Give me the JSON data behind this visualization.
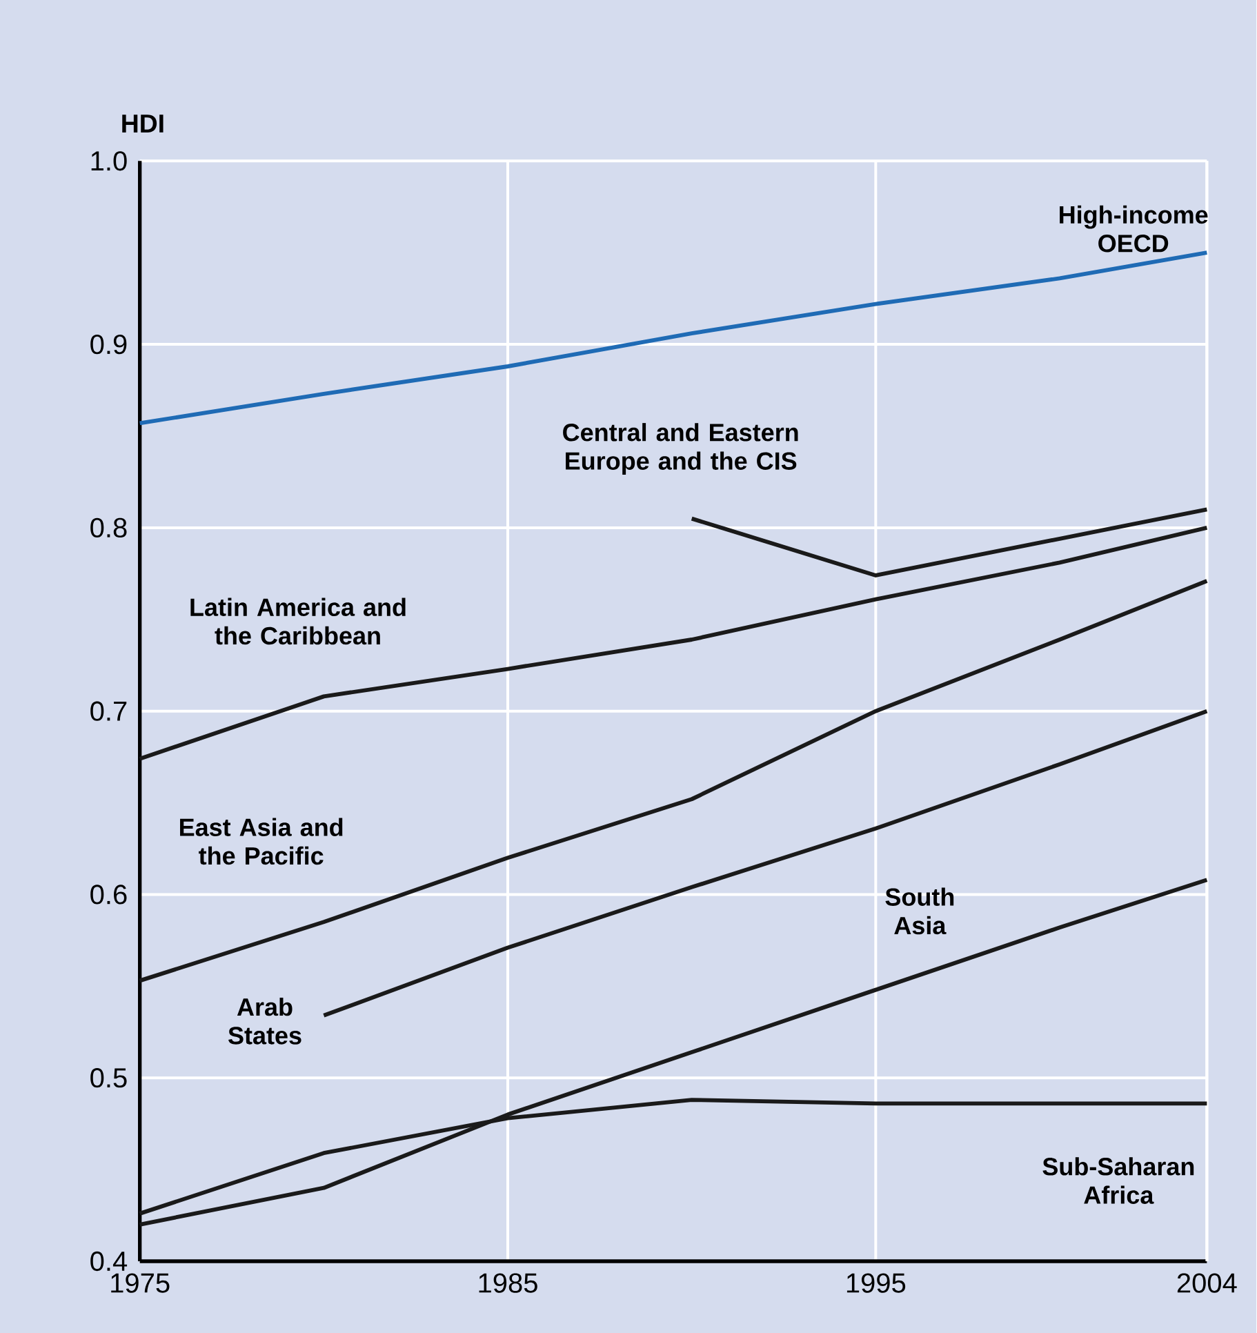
{
  "chart_data": {
    "type": "line",
    "ylabel": "HDI",
    "x": [
      1975,
      1980,
      1985,
      1990,
      1995,
      2000,
      2004
    ],
    "xlim": [
      1975,
      2004
    ],
    "xticks": [
      1975,
      1985,
      1995,
      2004
    ],
    "ylim": [
      0.4,
      1.0
    ],
    "yticks": [
      {
        "value": 0.4,
        "label": "0.4"
      },
      {
        "value": 0.5,
        "label": "0.5"
      },
      {
        "value": 0.6,
        "label": "0.6"
      },
      {
        "value": 0.7,
        "label": "0.7"
      },
      {
        "value": 0.8,
        "label": "0.8"
      },
      {
        "value": 0.9,
        "label": "0.9"
      },
      {
        "value": 1.0,
        "label": "1.0"
      }
    ],
    "grid": true,
    "series": [
      {
        "name": "High-income OECD",
        "color": "#1f6bb5",
        "values": [
          0.857,
          0.873,
          0.888,
          0.906,
          0.922,
          0.936,
          0.95
        ]
      },
      {
        "name": "Central and Eastern Europe and the CIS",
        "color": "#1a1a1a",
        "values": [
          null,
          null,
          null,
          0.805,
          0.774,
          0.794,
          0.81
        ]
      },
      {
        "name": "Latin America and the Caribbean",
        "color": "#1a1a1a",
        "values": [
          0.674,
          0.708,
          0.723,
          0.739,
          0.761,
          0.781,
          0.8
        ]
      },
      {
        "name": "East Asia and the Pacific",
        "color": "#1a1a1a",
        "values": [
          0.553,
          0.585,
          0.62,
          0.652,
          0.7,
          0.739,
          0.771
        ]
      },
      {
        "name": "Arab States",
        "color": "#1a1a1a",
        "values": [
          null,
          0.534,
          0.571,
          0.604,
          0.636,
          0.671,
          0.7
        ]
      },
      {
        "name": "South Asia",
        "color": "#1a1a1a",
        "values": [
          0.42,
          0.44,
          0.48,
          0.514,
          0.548,
          0.582,
          0.608
        ]
      },
      {
        "name": "Sub-Saharan Africa",
        "color": "#1a1a1a",
        "values": [
          0.426,
          0.459,
          0.478,
          0.488,
          0.486,
          0.486,
          0.486
        ]
      }
    ]
  }
}
